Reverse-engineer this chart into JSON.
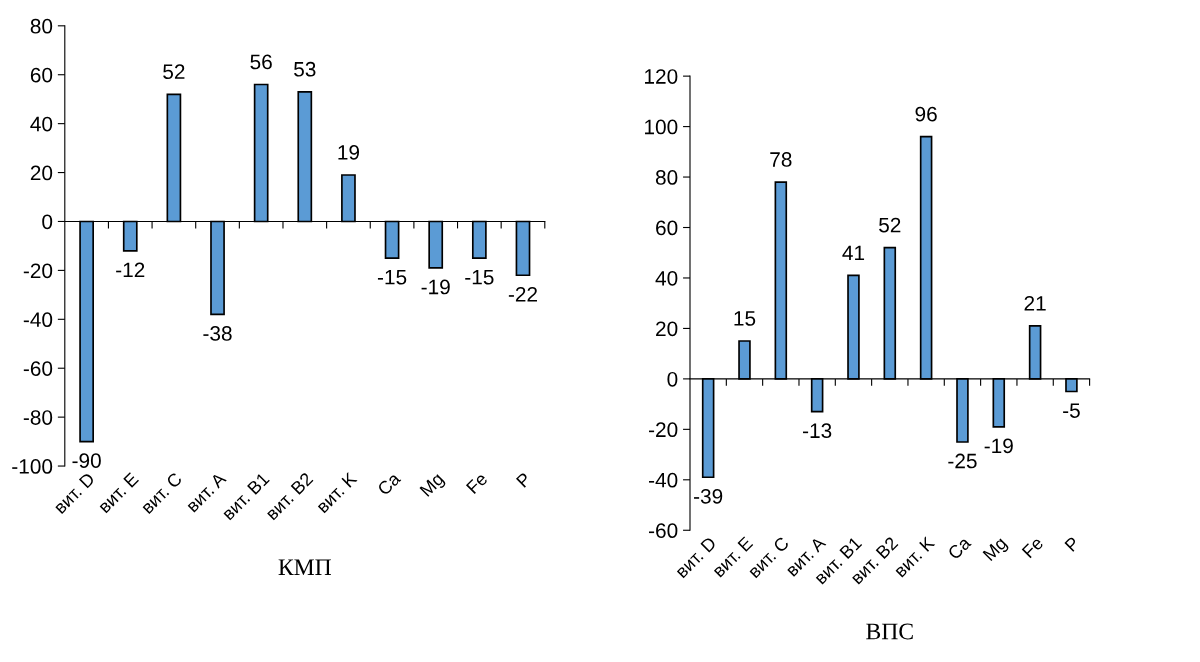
{
  "chart_data": [
    {
      "type": "bar",
      "xlabel": "КМП",
      "categories": [
        "вит. D",
        "вит. E",
        "вит. C",
        "вит. A",
        "вит. B1",
        "вит. B2",
        "вит. K",
        "Ca",
        "Mg",
        "Fe",
        "P"
      ],
      "values": [
        -90,
        -12,
        52,
        -38,
        56,
        53,
        19,
        -15,
        -19,
        -15,
        -22
      ],
      "color": "#5b9bd5",
      "data_labels": true,
      "ylim": [
        -100,
        80
      ],
      "yticks": [
        -100,
        -80,
        -60,
        -40,
        -20,
        0,
        20,
        40,
        60,
        80
      ]
    },
    {
      "type": "bar",
      "xlabel": "ВПС",
      "categories": [
        "вит. D",
        "вит. E",
        "вит. C",
        "вит. A",
        "вит. B1",
        "вит. B2",
        "вит. K",
        "Ca",
        "Mg",
        "Fe",
        "P"
      ],
      "values": [
        -39,
        15,
        78,
        -13,
        41,
        52,
        96,
        -25,
        -19,
        21,
        -5
      ],
      "color": "#5b9bd5",
      "data_labels": true,
      "ylim": [
        -60,
        120
      ],
      "yticks": [
        -60,
        -40,
        -20,
        0,
        20,
        40,
        60,
        80,
        100,
        120
      ]
    }
  ]
}
